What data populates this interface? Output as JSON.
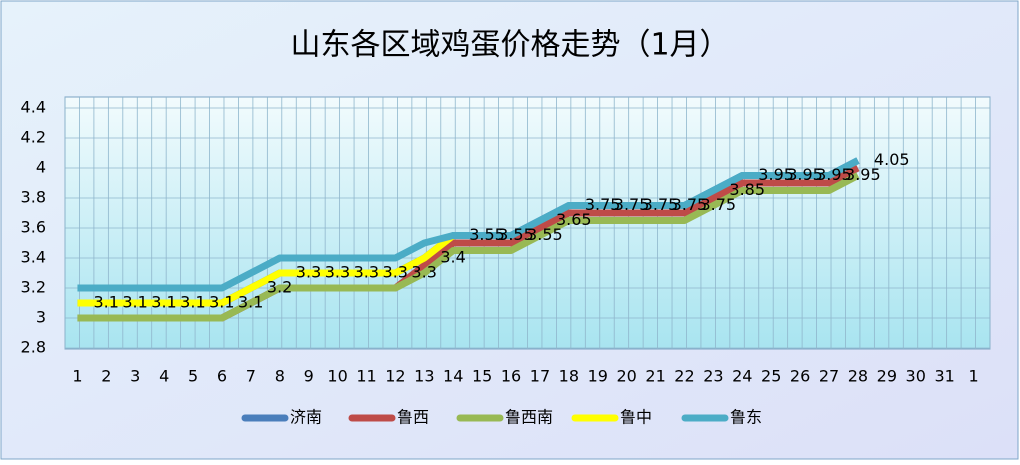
{
  "chart_data": {
    "type": "line",
    "title": "山东各区域鸡蛋价格走势（1月）",
    "categories": [
      "1",
      "2",
      "3",
      "4",
      "5",
      "6",
      "7",
      "8",
      "9",
      "10",
      "11",
      "12",
      "13",
      "14",
      "15",
      "16",
      "17",
      "18",
      "19",
      "20",
      "21",
      "22",
      "23",
      "24",
      "25",
      "26",
      "27",
      "28",
      "29",
      "30",
      "31",
      "1"
    ],
    "ylim": [
      2.8,
      4.4
    ],
    "yticks": [
      2.8,
      3,
      3.2,
      3.4,
      3.6,
      3.8,
      4,
      4.2,
      4.4
    ],
    "grid": true,
    "legend": "bottom",
    "data_labels_series": 0,
    "series": [
      {
        "name": "济南",
        "color": "#4a7ebb",
        "values": [
          3.1,
          3.1,
          3.1,
          3.1,
          3.1,
          3.1,
          3.2,
          3.3,
          3.3,
          3.3,
          3.3,
          3.3,
          3.4,
          3.55,
          3.55,
          3.55,
          3.65,
          3.75,
          3.75,
          3.75,
          3.75,
          3.75,
          3.85,
          3.95,
          3.95,
          3.95,
          3.95,
          4.05,
          null,
          null,
          null,
          null
        ]
      },
      {
        "name": "鲁西",
        "color": "#be4b48",
        "values": [
          3.0,
          3.0,
          3.0,
          3.0,
          3.0,
          3.0,
          3.1,
          3.2,
          3.2,
          3.2,
          3.2,
          3.2,
          3.35,
          3.5,
          3.5,
          3.5,
          3.6,
          3.7,
          3.7,
          3.7,
          3.7,
          3.7,
          3.8,
          3.9,
          3.9,
          3.9,
          3.9,
          4.0,
          null,
          null,
          null,
          null
        ]
      },
      {
        "name": "鲁西南",
        "color": "#98b954",
        "values": [
          3.0,
          3.0,
          3.0,
          3.0,
          3.0,
          3.0,
          3.1,
          3.2,
          3.2,
          3.2,
          3.2,
          3.2,
          3.3,
          3.45,
          3.45,
          3.45,
          3.55,
          3.65,
          3.65,
          3.65,
          3.65,
          3.65,
          3.75,
          3.85,
          3.85,
          3.85,
          3.85,
          3.95,
          null,
          null,
          null,
          null
        ]
      },
      {
        "name": "鲁中",
        "color": "#ffff00",
        "values": [
          3.1,
          3.1,
          3.1,
          3.1,
          3.1,
          3.1,
          3.2,
          3.3,
          3.3,
          3.3,
          3.3,
          3.3,
          3.4,
          3.55,
          null,
          null,
          null,
          null,
          null,
          null,
          null,
          null,
          null,
          null,
          null,
          null,
          null,
          null,
          null,
          null,
          null,
          null
        ]
      },
      {
        "name": "鲁东",
        "color": "#4bacc6",
        "values": [
          3.2,
          3.2,
          3.2,
          3.2,
          3.2,
          3.2,
          3.3,
          3.4,
          3.4,
          3.4,
          3.4,
          3.4,
          3.5,
          3.55,
          3.55,
          3.55,
          3.65,
          3.75,
          3.75,
          3.75,
          3.75,
          3.75,
          3.85,
          3.95,
          3.95,
          3.95,
          3.95,
          4.05,
          null,
          null,
          null,
          null
        ]
      }
    ]
  }
}
